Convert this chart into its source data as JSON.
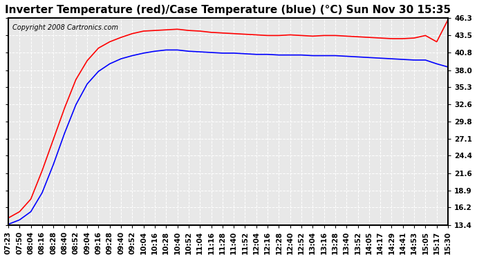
{
  "title": "Inverter Temperature (red)/Case Temperature (blue) (°C) Sun Nov 30 15:35",
  "copyright": "Copyright 2008 Cartronics.com",
  "yticks": [
    13.4,
    16.2,
    18.9,
    21.6,
    24.4,
    27.1,
    29.8,
    32.6,
    35.3,
    38.0,
    40.8,
    43.5,
    46.3
  ],
  "xtick_labels": [
    "07:23",
    "07:50",
    "08:04",
    "08:16",
    "08:28",
    "08:40",
    "08:52",
    "09:04",
    "09:16",
    "09:28",
    "09:40",
    "09:52",
    "10:04",
    "10:16",
    "10:28",
    "10:40",
    "10:52",
    "11:04",
    "11:16",
    "11:28",
    "11:40",
    "11:52",
    "12:04",
    "12:16",
    "12:28",
    "12:40",
    "12:52",
    "13:04",
    "13:16",
    "13:28",
    "13:40",
    "13:52",
    "14:05",
    "14:17",
    "14:29",
    "14:41",
    "14:53",
    "15:05",
    "15:17",
    "15:30"
  ],
  "red_x": [
    0,
    1,
    2,
    3,
    4,
    5,
    6,
    7,
    8,
    9,
    10,
    11,
    12,
    13,
    14,
    15,
    16,
    17,
    18,
    19,
    20,
    21,
    22,
    23,
    24,
    25,
    26,
    27,
    28,
    29,
    30,
    31,
    32,
    33,
    34,
    35,
    36,
    37,
    38,
    39
  ],
  "red_y": [
    14.5,
    15.5,
    17.5,
    22.0,
    27.0,
    32.0,
    36.5,
    39.5,
    41.5,
    42.5,
    43.2,
    43.8,
    44.2,
    44.3,
    44.4,
    44.5,
    44.3,
    44.2,
    44.0,
    43.9,
    43.8,
    43.7,
    43.6,
    43.5,
    43.5,
    43.6,
    43.5,
    43.4,
    43.5,
    43.5,
    43.4,
    43.3,
    43.2,
    43.1,
    43.0,
    43.0,
    43.1,
    43.5,
    42.5,
    46.0
  ],
  "blue_x": [
    0,
    1,
    2,
    3,
    4,
    5,
    6,
    7,
    8,
    9,
    10,
    11,
    12,
    13,
    14,
    15,
    16,
    17,
    18,
    19,
    20,
    21,
    22,
    23,
    24,
    25,
    26,
    27,
    28,
    29,
    30,
    31,
    32,
    33,
    34,
    35,
    36,
    37,
    38,
    39
  ],
  "blue_y": [
    13.5,
    14.2,
    15.5,
    18.5,
    23.0,
    28.0,
    32.5,
    35.8,
    37.8,
    39.0,
    39.8,
    40.3,
    40.7,
    41.0,
    41.2,
    41.2,
    41.0,
    40.9,
    40.8,
    40.7,
    40.7,
    40.6,
    40.5,
    40.5,
    40.4,
    40.4,
    40.4,
    40.3,
    40.3,
    40.3,
    40.2,
    40.1,
    40.0,
    39.9,
    39.8,
    39.7,
    39.6,
    39.6,
    39.0,
    38.5
  ],
  "bg_color": "#ffffff",
  "plot_bg_color": "#e8e8e8",
  "grid_color": "#ffffff",
  "red_color": "#ff0000",
  "blue_color": "#0000ff",
  "title_fontsize": 11,
  "tick_fontsize": 7.5,
  "copyright_fontsize": 7
}
